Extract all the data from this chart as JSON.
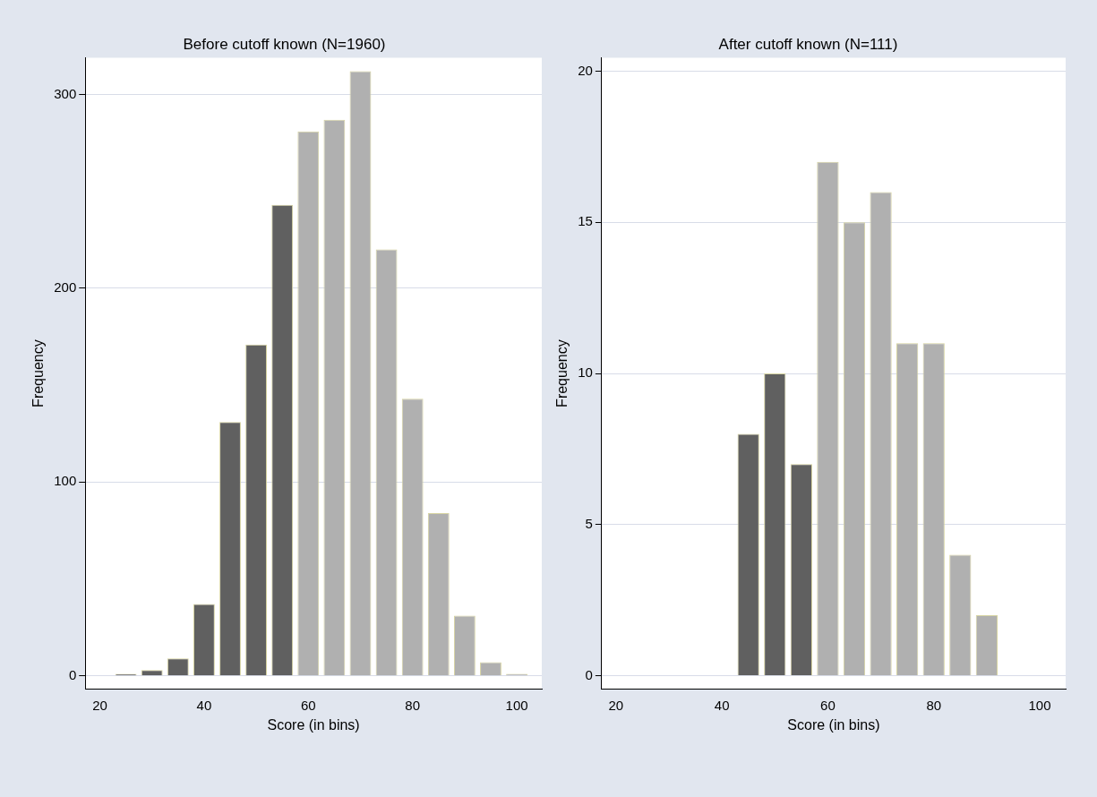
{
  "chart_data": [
    {
      "type": "histogram",
      "title": "Before cutoff known (N=1960)",
      "xlabel": "Score (in bins)",
      "ylabel": "Frequency",
      "bins": [
        22.5,
        27.5,
        32.5,
        37.5,
        42.5,
        47.5,
        52.5,
        57.5,
        62.5,
        67.5,
        72.5,
        77.5,
        82.5,
        87.5,
        92.5,
        97.5,
        102.5
      ],
      "values": [
        1,
        3,
        9,
        37,
        131,
        171,
        243,
        281,
        287,
        312,
        220,
        143,
        84,
        31,
        7,
        1
      ],
      "colors": [
        "#606060",
        "#606060",
        "#606060",
        "#606060",
        "#606060",
        "#606060",
        "#606060",
        "#b0b0b0",
        "#b0b0b0",
        "#b0b0b0",
        "#b0b0b0",
        "#b0b0b0",
        "#b0b0b0",
        "#b0b0b0",
        "#b0b0b0",
        "#b0b0b0"
      ],
      "xlim": [
        17.2,
        104.8
      ],
      "ylim": [
        -7,
        319
      ],
      "xticks": [
        20,
        40,
        60,
        80,
        100
      ],
      "yticks": [
        0,
        100,
        200,
        300
      ],
      "grid": "y"
    },
    {
      "type": "histogram",
      "title": "After cutoff known (N=111)",
      "xlabel": "Score (in bins)",
      "ylabel": "Frequency",
      "bins": [
        42.5,
        47.5,
        52.5,
        57.5,
        62.5,
        67.5,
        72.5,
        77.5,
        82.5,
        87.5,
        92.5
      ],
      "values": [
        8,
        10,
        7,
        17,
        15,
        16,
        11,
        11,
        4,
        2
      ],
      "colors": [
        "#606060",
        "#606060",
        "#606060",
        "#b0b0b0",
        "#b0b0b0",
        "#b0b0b0",
        "#b0b0b0",
        "#b0b0b0",
        "#b0b0b0",
        "#b0b0b0"
      ],
      "xlim": [
        17.3,
        104.9
      ],
      "ylim": [
        -0.45,
        20.45
      ],
      "xticks": [
        20,
        40,
        60,
        80,
        100
      ],
      "yticks": [
        0,
        5,
        10,
        15,
        20
      ],
      "grid": "y"
    }
  ]
}
